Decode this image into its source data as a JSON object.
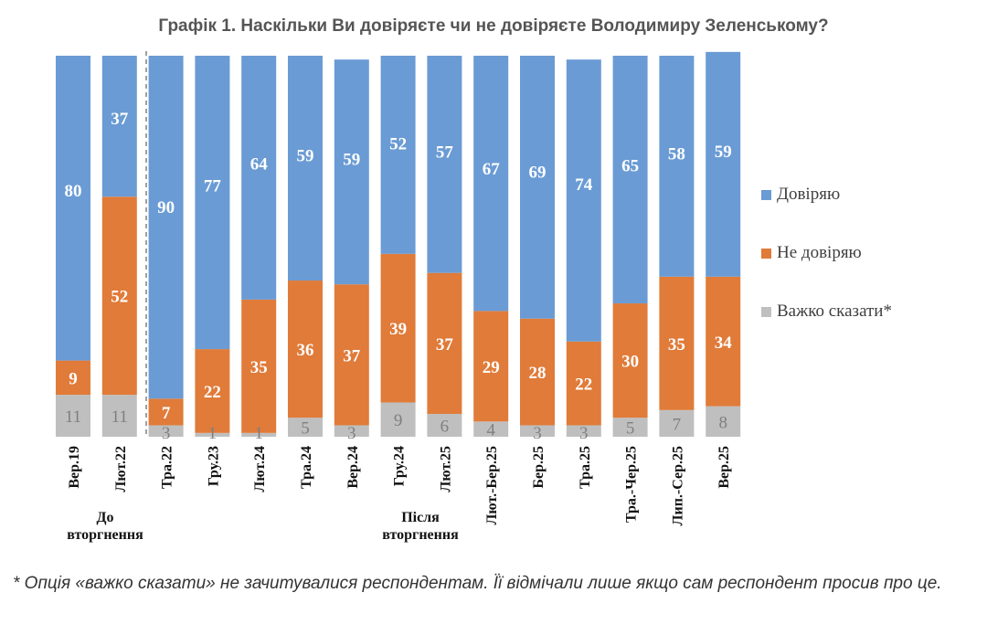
{
  "chart_data": {
    "type": "bar",
    "stacked": "100%",
    "title": "Графік 1. Наскільки Ви довіряєте чи не довіряєте Володимиру Зеленському?",
    "categories": [
      "Вер.19",
      "Лют.22",
      "Тра.22",
      "Гру.23",
      "Лют.24",
      "Тра.24",
      "Вер.24",
      "Гру.24",
      "Лют.25",
      "Лют.-Бер.25",
      "Бер.25",
      "Тра.25",
      "Тра.-Чер.25",
      "Лип.-Сер.25",
      "Вер.25"
    ],
    "series": [
      {
        "name": "Важко сказати*",
        "color": "#BFBFBF",
        "values": [
          11,
          11,
          3,
          1,
          1,
          5,
          3,
          9,
          6,
          4,
          3,
          3,
          5,
          7,
          8
        ]
      },
      {
        "name": "Не довіряю",
        "color": "#E07B39",
        "values": [
          9,
          52,
          7,
          22,
          35,
          36,
          37,
          39,
          37,
          29,
          28,
          22,
          30,
          35,
          34
        ]
      },
      {
        "name": "Довіряю",
        "color": "#6A9BD4",
        "values": [
          80,
          37,
          90,
          77,
          64,
          59,
          59,
          52,
          57,
          67,
          69,
          74,
          65,
          58,
          59
        ]
      }
    ],
    "legend_order": [
      "Довіряю",
      "Не довіряю",
      "Важко сказати*"
    ],
    "legend_position": "right",
    "groups": [
      {
        "label_line1": "До",
        "label_line2": "вторгнення"
      },
      {
        "label_line1": "Після",
        "label_line2": "вторгнення"
      }
    ],
    "separator_after_category": "Лют.22",
    "ylim": [
      0,
      100
    ],
    "grid": false
  },
  "footnote": "* Опція «важко сказати» не зачитувалися респондентам. Її відмічали лише якщо сам респондент просив про це."
}
